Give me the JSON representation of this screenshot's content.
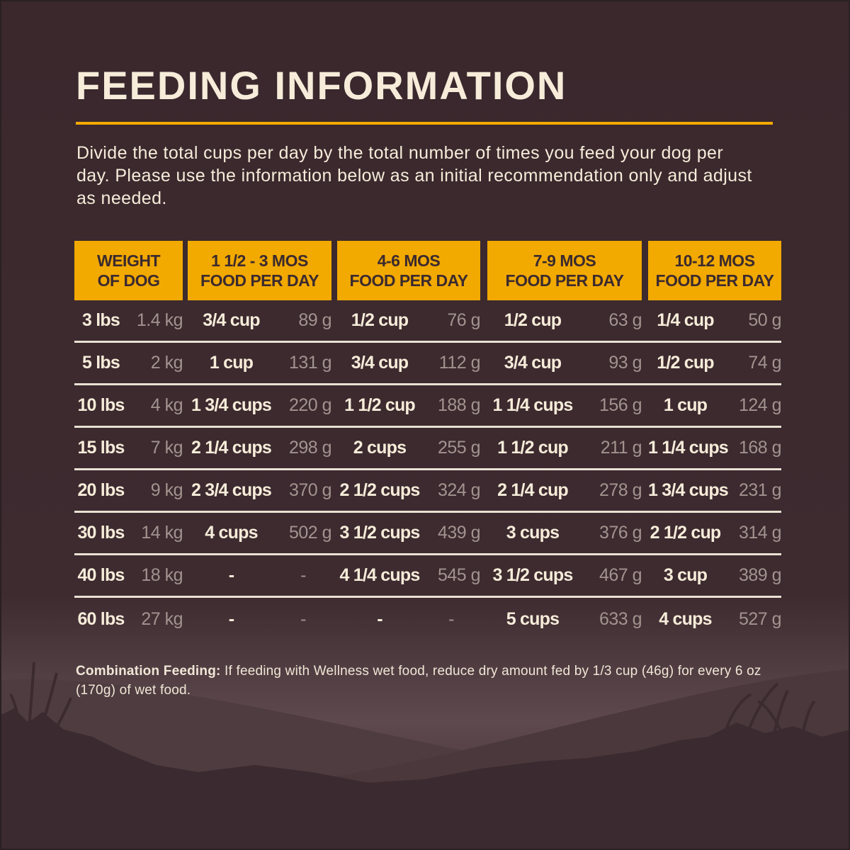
{
  "title": "FEEDING INFORMATION",
  "intro": "Divide the total cups per day by the total number of times you feed your dog per day. Please use the information below as an initial recommendation only and adjust as needed.",
  "colors": {
    "background": "#3b2a2f",
    "accent": "#f2a900",
    "text": "#f6ecd9",
    "muted": "#a2938f"
  },
  "table": {
    "headers": [
      [
        "WEIGHT",
        "OF DOG"
      ],
      [
        "1 1/2 - 3 MOS",
        "FOOD PER DAY"
      ],
      [
        "4-6 MOS",
        "FOOD PER DAY"
      ],
      [
        "7-9 MOS",
        "FOOD PER DAY"
      ],
      [
        "10-12 MOS",
        "FOOD PER DAY"
      ]
    ],
    "rows": [
      [
        "3 lbs",
        "1.4 kg",
        "3/4 cup",
        "89 g",
        "1/2 cup",
        "76 g",
        "1/2 cup",
        "63 g",
        "1/4 cup",
        "50 g"
      ],
      [
        "5 lbs",
        "2 kg",
        "1 cup",
        "131 g",
        "3/4 cup",
        "112 g",
        "3/4 cup",
        "93 g",
        "1/2 cup",
        "74 g"
      ],
      [
        "10 lbs",
        "4 kg",
        "1 3/4 cups",
        "220 g",
        "1 1/2 cup",
        "188 g",
        "1 1/4 cups",
        "156 g",
        "1 cup",
        "124 g"
      ],
      [
        "15 lbs",
        "7 kg",
        "2 1/4 cups",
        "298 g",
        "2 cups",
        "255 g",
        "1 1/2 cup",
        "211 g",
        "1 1/4 cups",
        "168 g"
      ],
      [
        "20 lbs",
        "9 kg",
        "2 3/4 cups",
        "370 g",
        "2 1/2 cups",
        "324 g",
        "2 1/4 cup",
        "278 g",
        "1 3/4 cups",
        "231 g"
      ],
      [
        "30 lbs",
        "14 kg",
        "4 cups",
        "502 g",
        "3 1/2 cups",
        "439 g",
        "3 cups",
        "376 g",
        "2 1/2 cup",
        "314 g"
      ],
      [
        "40 lbs",
        "18 kg",
        "-",
        "-",
        "4 1/4 cups",
        "545 g",
        "3 1/2 cups",
        "467 g",
        "3 cup",
        "389 g"
      ],
      [
        "60 lbs",
        "27 kg",
        "-",
        "-",
        "-",
        "-",
        "5 cups",
        "633 g",
        "4 cups",
        "527 g"
      ]
    ]
  },
  "combination": {
    "label": "Combination Feeding:",
    "text": " If feeding with Wellness wet food, reduce dry amount fed by 1/3 cup (46g) for every 6 oz (170g) of wet food."
  }
}
